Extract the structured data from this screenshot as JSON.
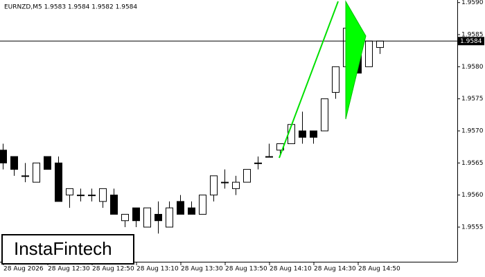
{
  "chart_data": {
    "type": "candlestick",
    "title": "EURNZD,M5  1.9583 1.9584 1.9582 1.9584",
    "watermark": "InstaFintech",
    "categories": [
      "28 Aug 2026",
      null,
      null,
      null,
      "28 Aug 12:30",
      null,
      null,
      null,
      "28 Aug 12:50",
      null,
      null,
      null,
      "28 Aug 13:10",
      null,
      null,
      null,
      "28 Aug 13:30",
      null,
      null,
      null,
      "28 Aug 13:50",
      null,
      null,
      null,
      "28 Aug 14:10",
      null,
      null,
      null,
      "28 Aug 14:30",
      null,
      null,
      null,
      "28 Aug 14:50",
      null,
      null
    ],
    "open": [
      1.9567,
      1.9566,
      1.9563,
      1.9562,
      1.9566,
      1.9565,
      1.956,
      1.956,
      1.956,
      1.9559,
      1.956,
      1.9556,
      1.9558,
      1.9555,
      1.9557,
      1.9555,
      1.9559,
      1.9558,
      1.9557,
      1.956,
      1.9562,
      1.9561,
      1.9562,
      1.9565,
      1.9566,
      1.9567,
      1.9568,
      1.957,
      1.957,
      1.957,
      1.9576,
      1.958,
      1.9585,
      1.958,
      1.9583
    ],
    "high": [
      1.9568,
      1.9566,
      1.9565,
      1.9565,
      1.9566,
      1.9566,
      1.9561,
      1.9561,
      1.9561,
      1.9561,
      1.9561,
      1.9557,
      1.9558,
      1.9558,
      1.9559,
      1.9559,
      1.956,
      1.9559,
      1.956,
      1.9563,
      1.9564,
      1.9563,
      1.9564,
      1.9566,
      1.9568,
      1.9568,
      1.9571,
      1.9573,
      1.957,
      1.9575,
      1.958,
      1.9586,
      1.9585,
      1.9584,
      1.9584
    ],
    "low": [
      1.9564,
      1.9563,
      1.9562,
      1.9562,
      1.9564,
      1.9559,
      1.9558,
      1.9559,
      1.9559,
      1.9558,
      1.9557,
      1.9555,
      1.9555,
      1.9555,
      1.9554,
      1.9555,
      1.9557,
      1.9557,
      1.9557,
      1.9559,
      1.9561,
      1.956,
      1.9562,
      1.9564,
      1.9566,
      1.9566,
      1.9568,
      1.9568,
      1.9568,
      1.957,
      1.9575,
      1.9579,
      1.9579,
      1.958,
      1.9582
    ],
    "close": [
      1.9565,
      1.9564,
      1.9563,
      1.9565,
      1.9564,
      1.9559,
      1.9561,
      1.956,
      1.956,
      1.9561,
      1.9557,
      1.9557,
      1.9556,
      1.9558,
      1.9556,
      1.9558,
      1.9557,
      1.9557,
      1.956,
      1.9563,
      1.9562,
      1.9562,
      1.9564,
      1.9565,
      1.9566,
      1.9568,
      1.9571,
      1.9569,
      1.9569,
      1.9575,
      1.958,
      1.9586,
      1.9579,
      1.9584,
      1.9584
    ],
    "up_color": "#ffffff",
    "down_color": "#000000",
    "last_price": 1.9584,
    "ylim": [
      1.95496,
      1.95904
    ],
    "yticks": [
      {
        "value": 1.959,
        "label": "1.9590"
      },
      1.9585,
      {
        "value": 1.958,
        "label": "1.9580"
      },
      1.9575,
      {
        "value": 1.957,
        "label": "1.9570"
      },
      1.9565,
      {
        "value": 1.956,
        "label": "1.9560"
      },
      1.9555
    ]
  }
}
